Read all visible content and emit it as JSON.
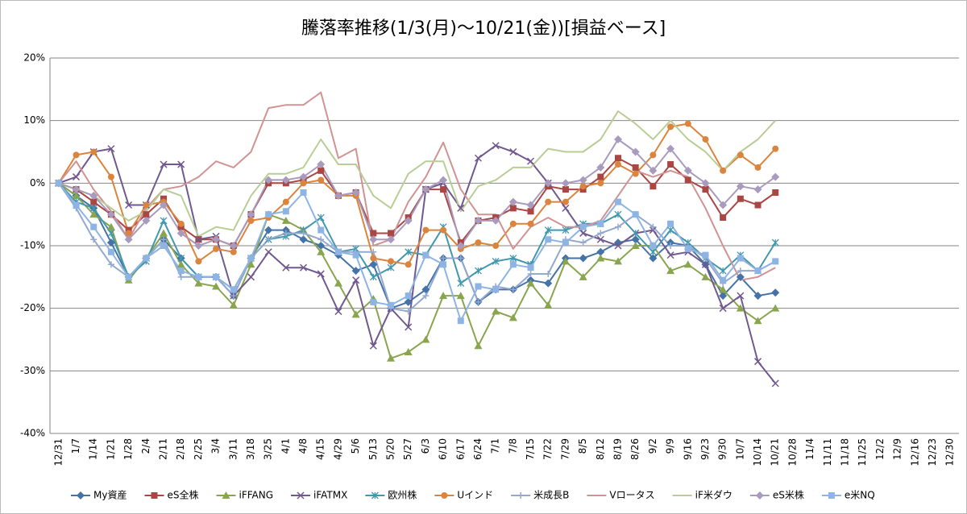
{
  "chart_data": {
    "type": "line",
    "title": "騰落率推移(1/3(月)～10/21(金))[損益ベース]",
    "categories": [
      "12/31",
      "1/7",
      "1/14",
      "1/21",
      "1/28",
      "2/4",
      "2/11",
      "2/18",
      "2/25",
      "3/4",
      "3/11",
      "3/18",
      "3/25",
      "4/1",
      "4/8",
      "4/15",
      "4/29",
      "5/6",
      "5/13",
      "5/20",
      "5/27",
      "6/3",
      "6/10",
      "6/17",
      "6/24",
      "7/1",
      "7/8",
      "7/15",
      "7/22",
      "7/29",
      "8/5",
      "8/12",
      "8/19",
      "8/26",
      "9/2",
      "9/9",
      "9/16",
      "9/23",
      "9/30",
      "10/7",
      "10/14",
      "10/21",
      "10/28",
      "11/4",
      "11/11",
      "11/18",
      "11/25",
      "12/2",
      "12/9",
      "12/16",
      "12/23",
      "12/30"
    ],
    "ylim": [
      -40,
      20
    ],
    "yticks": [
      {
        "value": -40,
        "label": "-40%"
      },
      {
        "value": -30,
        "label": "-30%"
      },
      {
        "value": -20,
        "label": "-20%"
      },
      {
        "value": -10,
        "label": "-10%"
      },
      {
        "value": 0,
        "label": "0%"
      },
      {
        "value": 10,
        "label": "10%"
      },
      {
        "value": 20,
        "label": "20%"
      }
    ],
    "grid": true,
    "legend": "bottom",
    "series": [
      {
        "name": "My資産",
        "color": "#4572A7",
        "marker": "diamond",
        "values": [
          0,
          -2,
          -4,
          -9.5,
          -15,
          -12,
          -9,
          -12,
          -15,
          -15,
          -18,
          -12,
          -7.5,
          -7.5,
          -9,
          -10,
          -11.5,
          -14,
          -13,
          -20,
          -19,
          -17,
          -12,
          -12,
          -19,
          -17,
          -17,
          -15.5,
          -16,
          -12,
          -12,
          -11,
          -9.5,
          -9,
          -12,
          -9.5,
          -10,
          -13,
          -18,
          -15,
          -18,
          -17.5,
          null,
          null,
          null,
          null,
          null,
          null,
          null,
          null,
          null,
          null
        ]
      },
      {
        "name": "eS全株",
        "color": "#AA4643",
        "marker": "square",
        "values": [
          0,
          -1,
          -3,
          -5,
          -7.5,
          -5,
          -2.5,
          -7,
          -9,
          -9,
          -10,
          -5,
          0,
          0,
          0.5,
          2,
          -2,
          -1.5,
          -8,
          -8,
          -5.5,
          -1,
          -1,
          -9.5,
          -6,
          -5.5,
          -4,
          -4.5,
          -0.5,
          -1,
          -1,
          1,
          4,
          2.5,
          -0.5,
          3,
          0.5,
          -1,
          -5.5,
          -2.5,
          -3.5,
          -1.5,
          null,
          null,
          null,
          null,
          null,
          null,
          null,
          null,
          null,
          null
        ]
      },
      {
        "name": "iFFANG",
        "color": "#89A54E",
        "marker": "triangle",
        "values": [
          0,
          -2,
          -5,
          -7,
          -15.5,
          -12,
          -8,
          -13,
          -16,
          -16.5,
          -19.5,
          -13,
          -5,
          -6,
          -7.5,
          -11,
          -16,
          -21,
          -18.5,
          -28,
          -27,
          -25,
          -18,
          -18,
          -26,
          -20.5,
          -21.5,
          -16,
          -19.5,
          -12.5,
          -15,
          -12,
          -12.5,
          -10,
          -10,
          -14,
          -13,
          -15,
          -17,
          -20,
          -22,
          -20,
          null,
          null,
          null,
          null,
          null,
          null,
          null,
          null,
          null,
          null
        ]
      },
      {
        "name": "iFATMX",
        "color": "#71588F",
        "marker": "x",
        "values": [
          0,
          1,
          5,
          5.5,
          -3.5,
          -3.5,
          3,
          3,
          -9,
          -8.5,
          -18,
          -15,
          -11,
          -13.5,
          -13.5,
          -14.5,
          -20.5,
          -15.5,
          -26,
          -20,
          -23,
          -1,
          0,
          -4,
          4,
          6,
          5,
          3.5,
          0,
          -4,
          -8,
          -9,
          -10,
          -8,
          -7.5,
          -11.5,
          -11,
          -13,
          -20,
          -18,
          -28.5,
          -32,
          null,
          null,
          null,
          null,
          null,
          null,
          null,
          null,
          null,
          null
        ]
      },
      {
        "name": "欧州株",
        "color": "#4198AF",
        "marker": "star",
        "values": [
          0,
          -3,
          -4,
          -8,
          -15,
          -12.5,
          -6,
          -12,
          -15,
          -15,
          -17,
          -12,
          -9,
          -8.5,
          -7.5,
          -5.5,
          -11,
          -10.5,
          -15,
          -13.5,
          -11,
          -11.5,
          -7,
          -16,
          -14,
          -12.5,
          -12,
          -13,
          -7.5,
          -7.5,
          -6.5,
          -6.5,
          -5,
          -8,
          -11,
          -7.5,
          -9.5,
          -12,
          -14,
          -11.5,
          -14,
          -9.5,
          null,
          null,
          null,
          null,
          null,
          null,
          null,
          null,
          null,
          null
        ]
      },
      {
        "name": "Uインド",
        "color": "#DB843D",
        "marker": "circle",
        "values": [
          0,
          4.5,
          5,
          1,
          -8,
          -3.5,
          -3,
          -6.5,
          -12.5,
          -10.5,
          -11,
          -6,
          -5.5,
          -3,
          0,
          0.5,
          -2,
          -2,
          -12,
          -12.5,
          -13,
          -7.5,
          -7.5,
          -10.5,
          -9.5,
          -10,
          -6.5,
          -6.5,
          -3,
          -3,
          -0.5,
          0,
          3,
          1.5,
          4.5,
          9,
          9.5,
          7,
          2,
          4.5,
          2.5,
          5.5,
          null,
          null,
          null,
          null,
          null,
          null,
          null,
          null,
          null,
          null
        ]
      },
      {
        "name": "米成長B",
        "color": "#93A9CF",
        "marker": "plus",
        "values": [
          0,
          -4,
          -9,
          -13,
          -15,
          -12,
          -9,
          -15,
          -15,
          -15,
          -18,
          -12,
          -9,
          -8,
          -8,
          -9,
          -11,
          -11,
          -11,
          -20,
          -20.5,
          -18,
          -12,
          -12,
          -19,
          -16.5,
          -17,
          -14.5,
          -14.5,
          -9,
          -9.5,
          -8,
          -7,
          -5,
          -7,
          -10,
          -10,
          -12,
          -16,
          -14,
          -14,
          -12.5,
          null,
          null,
          null,
          null,
          null,
          null,
          null,
          null,
          null,
          null
        ]
      },
      {
        "name": "Vロータス",
        "color": "#D19392",
        "marker": "none",
        "values": [
          0,
          3.5,
          -1,
          -4.5,
          -9,
          -4,
          -1,
          -0.5,
          1,
          3.5,
          2.5,
          5,
          12,
          12.5,
          12.5,
          14.5,
          4,
          5.5,
          -10,
          -9,
          -3,
          1,
          6.5,
          -1,
          -5,
          -5,
          -10.5,
          -7,
          -5.5,
          -7,
          -7,
          -6,
          -2,
          2,
          1,
          2,
          1,
          -4,
          -10,
          -15.5,
          -15,
          -13.5,
          null,
          null,
          null,
          null,
          null,
          null,
          null,
          null,
          null,
          null
        ]
      },
      {
        "name": "iF米ダウ",
        "color": "#B9CD96",
        "marker": "none",
        "values": [
          0,
          -1,
          -2,
          -4,
          -6,
          -4.5,
          -1,
          -2,
          -8.5,
          -7,
          -7.5,
          -2,
          1.5,
          1.5,
          2.5,
          7,
          3,
          3,
          -2,
          -4,
          1.5,
          3.5,
          3.5,
          -4.5,
          -0.5,
          0.5,
          2.5,
          2.5,
          5.5,
          5,
          5,
          7,
          11.5,
          9.5,
          7,
          10,
          7,
          5,
          2,
          5,
          7,
          10,
          null,
          null,
          null,
          null,
          null,
          null,
          null,
          null,
          null,
          null
        ]
      },
      {
        "name": "eS米株",
        "color": "#A99BBD",
        "marker": "diamond",
        "values": [
          0,
          -1,
          -2,
          -5,
          -9,
          -6,
          -3.5,
          -8,
          -10,
          -9,
          -10,
          -5,
          0.5,
          0.5,
          1,
          3,
          -2,
          -1.5,
          -9,
          -9,
          -6,
          -1,
          0.5,
          -10,
          -6,
          -6,
          -3,
          -3.5,
          0,
          0,
          0.5,
          2.5,
          7,
          5,
          2,
          5.5,
          2,
          0,
          -3.5,
          -0.5,
          -1,
          1,
          null,
          null,
          null,
          null,
          null,
          null,
          null,
          null,
          null,
          null
        ]
      },
      {
        "name": "e米NQ",
        "color": "#8EB4E3",
        "marker": "square",
        "values": [
          0,
          -3.5,
          -7,
          -11,
          -15,
          -12,
          -10,
          -14,
          -15,
          -15,
          -17,
          -12,
          -5,
          -4.5,
          -1.5,
          -7.5,
          -11,
          -11.5,
          -19,
          -19.5,
          -18,
          -11.5,
          -13,
          -22,
          -16.5,
          -17,
          -13,
          -13.5,
          -9,
          -9.5,
          -7,
          -6.5,
          -3,
          -5,
          -10,
          -6.5,
          -10.5,
          -11.5,
          -15.5,
          -12,
          -14,
          -12.5,
          null,
          null,
          null,
          null,
          null,
          null,
          null,
          null,
          null,
          null
        ]
      }
    ]
  }
}
